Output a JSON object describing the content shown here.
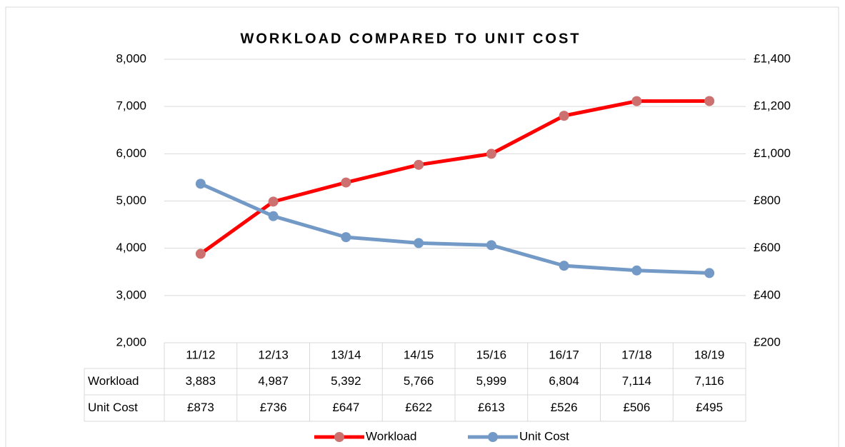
{
  "chart_data": {
    "type": "line",
    "title": "WORKLOAD COMPARED TO UNIT COST",
    "categories": [
      "11/12",
      "12/13",
      "13/14",
      "14/15",
      "15/16",
      "16/17",
      "17/18",
      "18/19"
    ],
    "series": [
      {
        "name": "Workload",
        "color": "#ff0000",
        "marker_color": "#cd7070",
        "values": [
          3883,
          4987,
          5392,
          5766,
          5999,
          6804,
          7114,
          7116
        ],
        "value_labels": [
          "3,883",
          "4,987",
          "5,392",
          "5,766",
          "5,999",
          "6,804",
          "7,114",
          "7,116"
        ]
      },
      {
        "name": "Unit Cost",
        "color": "#7399c6",
        "marker_color": "#7399c6",
        "axis": "y2",
        "values": [
          873,
          736,
          647,
          622,
          613,
          526,
          506,
          495
        ],
        "value_labels": [
          "£873",
          "£736",
          "£647",
          "£622",
          "£613",
          "£526",
          "£506",
          "£495"
        ]
      }
    ],
    "ylim": [
      2000,
      8000
    ],
    "yticks": [
      {
        "value": 2000,
        "label": "2,000"
      },
      {
        "value": 3000,
        "label": "3,000"
      },
      {
        "value": 4000,
        "label": "4,000"
      },
      {
        "value": 5000,
        "label": "5,000"
      },
      {
        "value": 6000,
        "label": "6,000"
      },
      {
        "value": 7000,
        "label": "7,000"
      },
      {
        "value": 8000,
        "label": "8,000"
      }
    ],
    "y2lim": [
      200,
      1400
    ],
    "y2ticks": [
      {
        "value": 200,
        "label": "£200"
      },
      {
        "value": 400,
        "label": "£400"
      },
      {
        "value": 600,
        "label": "£600"
      },
      {
        "value": 800,
        "label": "£800"
      },
      {
        "value": 1000,
        "label": "£1,000"
      },
      {
        "value": 1200,
        "label": "£1,200"
      },
      {
        "value": 1400,
        "label": "£1,400"
      }
    ],
    "grid": true,
    "legend": "bottom",
    "data_table": true
  }
}
